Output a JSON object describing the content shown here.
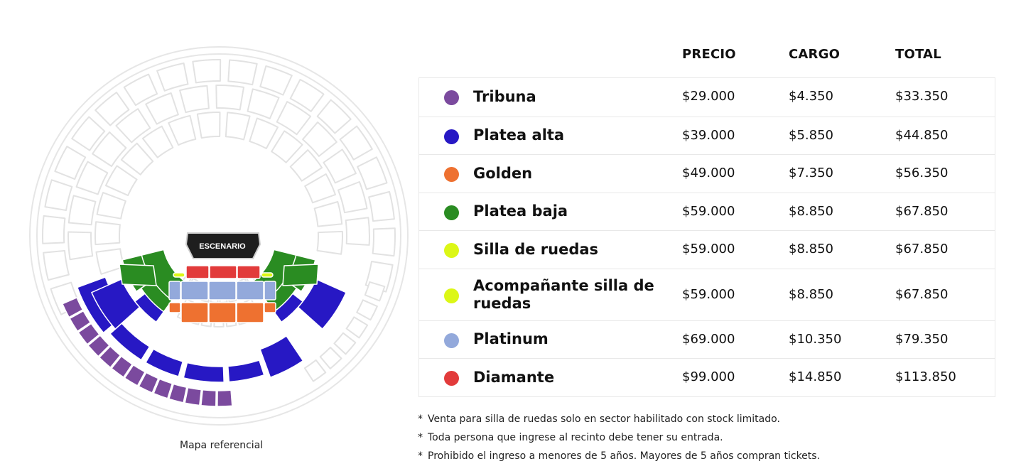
{
  "map": {
    "stage_label": "ESCENARIO",
    "caption": "Mapa referencial"
  },
  "table": {
    "headers": {
      "price": "PRECIO",
      "charge": "CARGO",
      "total": "TOTAL"
    },
    "rows": [
      {
        "zone": "Tribuna",
        "color": "#7b4a9e",
        "price": "$29.000",
        "charge": "$4.350",
        "total": "$33.350"
      },
      {
        "zone": "Platea alta",
        "color": "#2718c4",
        "price": "$39.000",
        "charge": "$5.850",
        "total": "$44.850"
      },
      {
        "zone": "Golden",
        "color": "#ee7130",
        "price": "$49.000",
        "charge": "$7.350",
        "total": "$56.350"
      },
      {
        "zone": "Platea baja",
        "color": "#2a8c22",
        "price": "$59.000",
        "charge": "$8.850",
        "total": "$67.850"
      },
      {
        "zone": "Silla de ruedas",
        "color": "#dcf716",
        "price": "$59.000",
        "charge": "$8.850",
        "total": "$67.850"
      },
      {
        "zone": "Acompañante silla de ruedas",
        "color": "#dcf716",
        "price": "$59.000",
        "charge": "$8.850",
        "total": "$67.850"
      },
      {
        "zone": "Platinum",
        "color": "#93a9db",
        "price": "$69.000",
        "charge": "$10.350",
        "total": "$79.350"
      },
      {
        "zone": "Diamante",
        "color": "#e23b3b",
        "price": "$99.000",
        "charge": "$14.850",
        "total": "$113.850"
      }
    ]
  },
  "notes": [
    "Venta para silla de ruedas solo en sector habilitado con stock limitado.",
    "Toda persona que ingrese al recinto debe tener su entrada.",
    "Prohibido el ingreso a menores de 5 años. Mayores de 5 años compran tickets."
  ]
}
